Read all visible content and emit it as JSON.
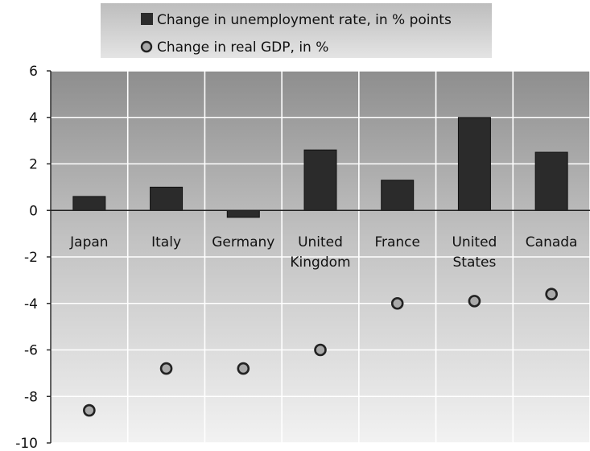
{
  "chart_data": {
    "type": "bar",
    "title": "",
    "xlabel": "",
    "ylabel": "",
    "ylim": [
      -10,
      6
    ],
    "yticks": [
      6,
      4,
      2,
      0,
      -2,
      -4,
      -6,
      -8,
      -10
    ],
    "grid": true,
    "legend_position": "top-center",
    "categories": [
      [
        "Japan"
      ],
      [
        "Italy"
      ],
      [
        "Germany"
      ],
      [
        "United",
        "Kingdom"
      ],
      [
        "France"
      ],
      [
        "United",
        "States"
      ],
      [
        "Canada"
      ]
    ],
    "series": [
      {
        "name": "Change in unemployment  rate, in % points",
        "type": "bar",
        "color": "#2b2b2b",
        "values": [
          0.6,
          1.0,
          -0.3,
          2.6,
          1.3,
          4.0,
          2.5
        ]
      },
      {
        "name": "Change in real GDP, in %",
        "type": "scatter",
        "color": "#a9a9a9",
        "values": [
          -8.6,
          -6.8,
          -6.8,
          -6.0,
          -4.0,
          -3.9,
          -3.6
        ]
      }
    ]
  }
}
